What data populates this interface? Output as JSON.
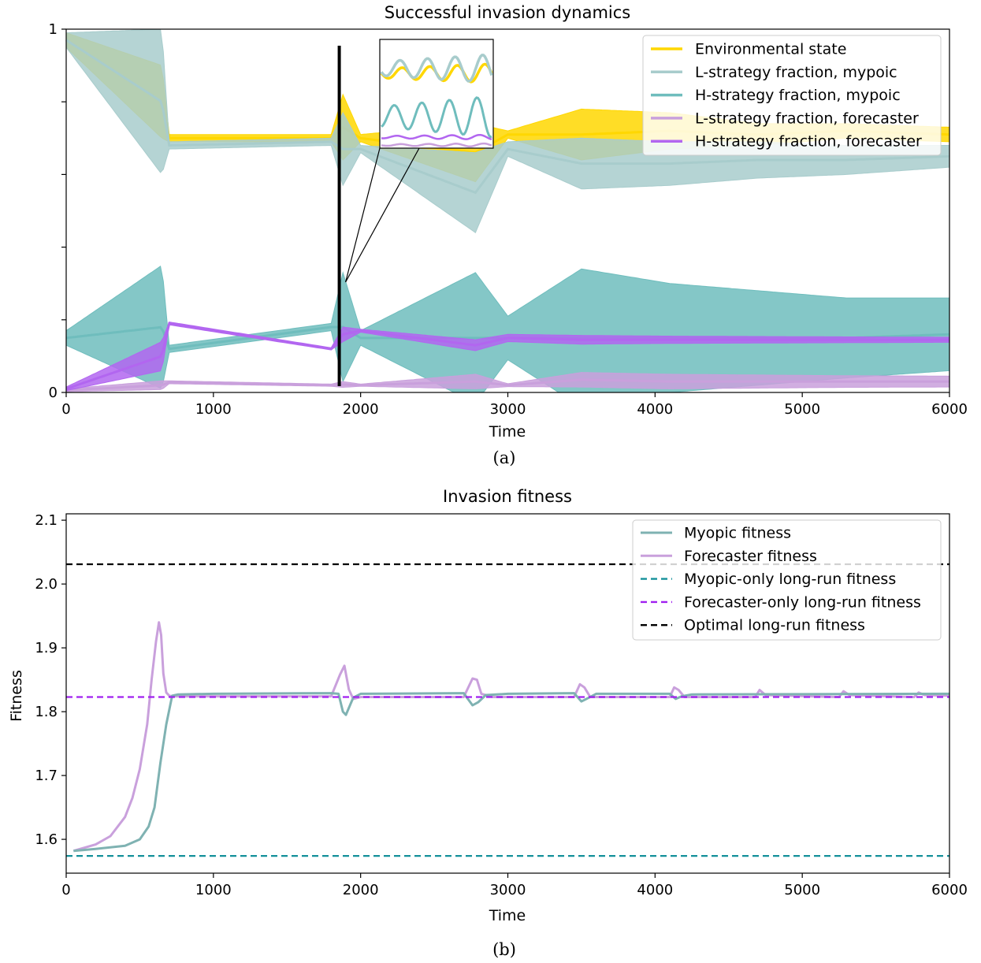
{
  "chart_data": [
    {
      "type": "line",
      "title": "Successful invasion dynamics",
      "caption": "(a)",
      "xlabel": "Time",
      "ylabel": "",
      "xlim": [
        0,
        6000
      ],
      "ylim": [
        0,
        1
      ],
      "xticks": [
        "0",
        "1000",
        "2000",
        "3000",
        "4000",
        "5000",
        "6000"
      ],
      "yticks": [
        "0",
        "1"
      ],
      "legend": "top-right",
      "inset": {
        "x_range": [
          1855,
          1880
        ],
        "marker_x": 1855
      },
      "series": [
        {
          "name": "Environmental state",
          "color": "#FFD700",
          "x": [
            0,
            650,
            700,
            1800,
            1880,
            2000,
            2780,
            3000,
            3500,
            4100,
            4700,
            5300,
            6000
          ],
          "y_mean": [
            0.97,
            0.8,
            0.7,
            0.7,
            0.73,
            0.7,
            0.66,
            0.71,
            0.71,
            0.72,
            0.71,
            0.72,
            0.71
          ],
          "y_band": [
            0.02,
            0.1,
            0.01,
            0.01,
            0.09,
            0.01,
            0.08,
            0.01,
            0.07,
            0.05,
            0.03,
            0.02,
            0.02
          ]
        },
        {
          "name": "L-strategy fraction, mypoic",
          "color": "#A8CCCC",
          "x": [
            0,
            650,
            700,
            1800,
            1880,
            2000,
            2780,
            3000,
            3500,
            4100,
            4700,
            5300,
            6000
          ],
          "y_mean": [
            0.97,
            0.8,
            0.68,
            0.69,
            0.67,
            0.67,
            0.55,
            0.67,
            0.63,
            0.63,
            0.64,
            0.64,
            0.65
          ],
          "y_band": [
            0.02,
            0.2,
            0.01,
            0.01,
            0.1,
            0.01,
            0.11,
            0.02,
            0.07,
            0.06,
            0.05,
            0.04,
            0.03
          ]
        },
        {
          "name": "H-strategy fraction, mypoic",
          "color": "#6FBDBD",
          "x": [
            0,
            650,
            700,
            1800,
            1880,
            2000,
            2780,
            3000,
            3500,
            4100,
            4700,
            5300,
            6000
          ],
          "y_mean": [
            0.15,
            0.18,
            0.12,
            0.18,
            0.18,
            0.15,
            0.15,
            0.15,
            0.15,
            0.15,
            0.15,
            0.15,
            0.16
          ],
          "y_band": [
            0.02,
            0.17,
            0.01,
            0.01,
            0.15,
            0.02,
            0.18,
            0.06,
            0.19,
            0.15,
            0.13,
            0.11,
            0.1
          ]
        },
        {
          "name": "L-strategy fraction, forecaster",
          "color": "#C9A0DC",
          "x": [
            0,
            650,
            700,
            1800,
            1880,
            2000,
            2780,
            3000,
            3500,
            4100,
            4700,
            5300,
            6000
          ],
          "y_mean": [
            0.006,
            0.02,
            0.028,
            0.02,
            0.022,
            0.02,
            0.03,
            0.02,
            0.035,
            0.03,
            0.03,
            0.03,
            0.03
          ],
          "y_band": [
            0.004,
            0.012,
            0.004,
            0.003,
            0.008,
            0.003,
            0.02,
            0.004,
            0.02,
            0.02,
            0.018,
            0.016,
            0.015
          ]
        },
        {
          "name": "H-strategy fraction, forecaster",
          "color": "#B266F0",
          "x": [
            0,
            650,
            700,
            1800,
            1880,
            2000,
            2780,
            3000,
            3500,
            4100,
            4700,
            5300,
            6000
          ],
          "y_mean": [
            0.01,
            0.1,
            0.19,
            0.12,
            0.16,
            0.17,
            0.13,
            0.15,
            0.145,
            0.145,
            0.145,
            0.145,
            0.145
          ],
          "y_band": [
            0.005,
            0.04,
            0.004,
            0.003,
            0.02,
            0.004,
            0.015,
            0.01,
            0.012,
            0.01,
            0.009,
            0.008,
            0.007
          ]
        }
      ]
    },
    {
      "type": "line",
      "title": "Invasion fitness",
      "caption": "(b)",
      "xlabel": "Time",
      "ylabel": "Fitness",
      "xlim": [
        0,
        6000
      ],
      "ylim": [
        1.547,
        2.11
      ],
      "xticks": [
        "0",
        "1000",
        "2000",
        "3000",
        "4000",
        "5000",
        "6000"
      ],
      "yticks": [
        "1.6",
        "1.7",
        "1.8",
        "1.9",
        "2.0",
        "2.1"
      ],
      "legend": "top-right",
      "series": [
        {
          "name": "Myopic fitness",
          "color": "#7FB2B2",
          "style": "solid",
          "x": [
            50,
            200,
            400,
            500,
            560,
            600,
            640,
            680,
            720,
            760,
            1000,
            1800,
            1850,
            1880,
            1900,
            1950,
            2000,
            2700,
            2760,
            2800,
            2850,
            3000,
            3450,
            3500,
            3550,
            3600,
            4100,
            4140,
            4180,
            4250,
            6000
          ],
          "y": [
            1.582,
            1.585,
            1.59,
            1.6,
            1.62,
            1.65,
            1.72,
            1.78,
            1.825,
            1.827,
            1.828,
            1.829,
            1.828,
            1.8,
            1.795,
            1.822,
            1.828,
            1.829,
            1.81,
            1.815,
            1.826,
            1.828,
            1.829,
            1.816,
            1.822,
            1.828,
            1.828,
            1.82,
            1.824,
            1.827,
            1.828
          ]
        },
        {
          "name": "Forecaster fitness",
          "color": "#C9A0DC",
          "style": "solid",
          "x": [
            50,
            200,
            300,
            400,
            450,
            500,
            550,
            580,
            610,
            630,
            645,
            660,
            680,
            700,
            720,
            760,
            1000,
            1800,
            1860,
            1890,
            1920,
            1950,
            2000,
            2700,
            2760,
            2790,
            2820,
            2900,
            3450,
            3490,
            3520,
            3560,
            4100,
            4130,
            4160,
            4200,
            4680,
            4710,
            4750,
            5250,
            5280,
            5320,
            5760,
            5790,
            5830,
            6000
          ],
          "y": [
            1.582,
            1.592,
            1.605,
            1.635,
            1.665,
            1.71,
            1.78,
            1.85,
            1.91,
            1.94,
            1.92,
            1.86,
            1.83,
            1.825,
            1.824,
            1.824,
            1.824,
            1.824,
            1.858,
            1.872,
            1.835,
            1.82,
            1.823,
            1.823,
            1.852,
            1.85,
            1.828,
            1.823,
            1.823,
            1.843,
            1.838,
            1.823,
            1.823,
            1.838,
            1.834,
            1.823,
            1.823,
            1.834,
            1.826,
            1.823,
            1.832,
            1.826,
            1.823,
            1.83,
            1.826,
            1.825
          ]
        },
        {
          "name": "Myopic-only long-run fitness",
          "color": "#14909A",
          "style": "dashed",
          "x": [
            0,
            6000
          ],
          "y": [
            1.574,
            1.574
          ]
        },
        {
          "name": "Forecaster-only long-run fitness",
          "color": "#A020F0",
          "style": "dashed",
          "x": [
            0,
            6000
          ],
          "y": [
            1.823,
            1.823
          ]
        },
        {
          "name": "Optimal long-run fitness",
          "color": "#000000",
          "style": "dashed",
          "x": [
            0,
            6000
          ],
          "y": [
            2.031,
            2.031
          ]
        }
      ]
    }
  ]
}
